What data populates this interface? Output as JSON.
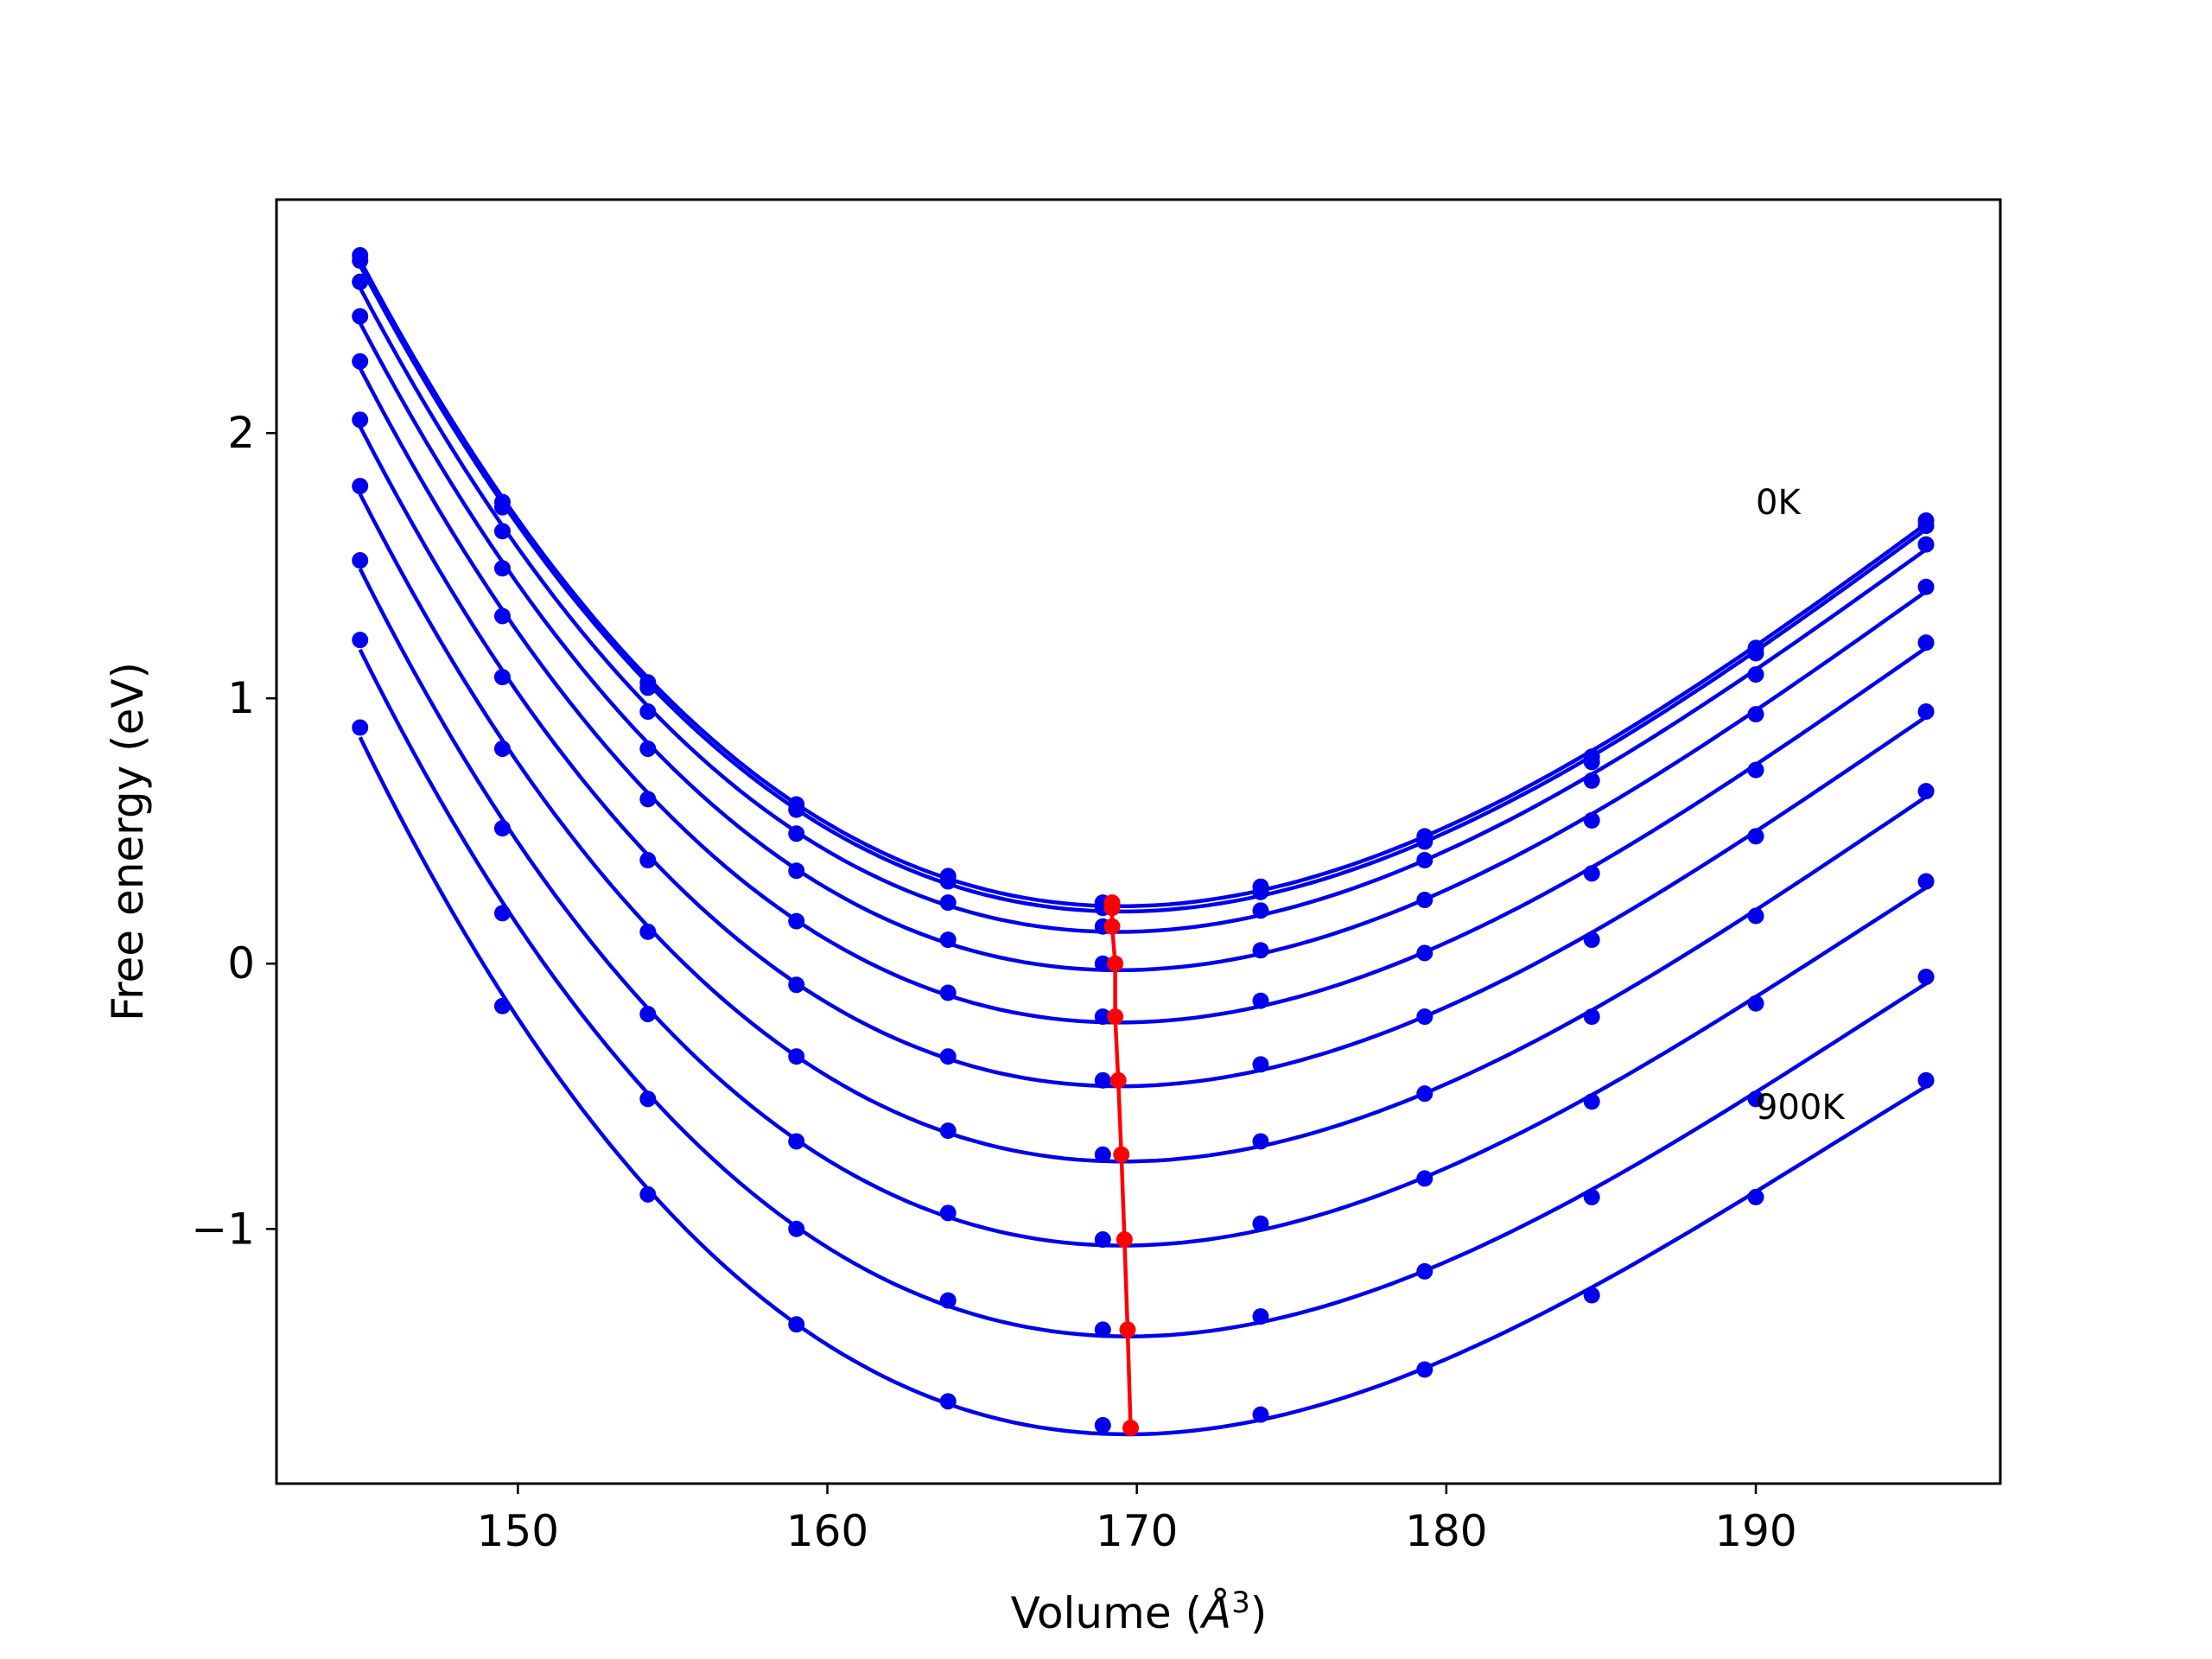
{
  "chart_data": {
    "type": "line",
    "xlabel": "Volume",
    "xlabel_unit_base": "Å",
    "xlabel_unit_exp": "3",
    "ylabel": "Free energy (eV)",
    "xlim": [
      142.2,
      197.9
    ],
    "ylim": [
      -1.96,
      2.88
    ],
    "xticks": [
      150,
      160,
      170,
      180,
      190
    ],
    "yticks": [
      -1,
      0,
      1,
      2
    ],
    "ytick_labels": [
      "−1",
      "0",
      "1",
      "2"
    ],
    "grid": false,
    "legend": "none",
    "colors": {
      "curves": "#0000ee",
      "minima": "#ff0000",
      "frame": "#000000"
    },
    "annotations": [
      {
        "text": "0K",
        "x": 190.0,
        "y": 1.74
      },
      {
        "text": "900K",
        "x": 190.0,
        "y": -0.54
      }
    ],
    "volumes": [
      144.9,
      149.5,
      154.2,
      159.0,
      163.9,
      168.9,
      174.0,
      179.3,
      184.7,
      190.0,
      195.5
    ],
    "series": [
      {
        "values": [
          2.67,
          1.74,
          1.06,
          0.6,
          0.33,
          0.23,
          0.29,
          0.48,
          0.78,
          1.19,
          1.67
        ]
      },
      {
        "values": [
          2.65,
          1.72,
          1.04,
          0.58,
          0.31,
          0.21,
          0.27,
          0.46,
          0.76,
          1.17,
          1.65
        ]
      },
      {
        "values": [
          2.57,
          1.63,
          0.95,
          0.49,
          0.23,
          0.14,
          0.2,
          0.39,
          0.69,
          1.09,
          1.58
        ]
      },
      {
        "values": [
          2.44,
          1.49,
          0.81,
          0.35,
          0.09,
          0.0,
          0.05,
          0.24,
          0.54,
          0.94,
          1.42
        ]
      },
      {
        "values": [
          2.27,
          1.31,
          0.62,
          0.16,
          -0.11,
          -0.2,
          -0.14,
          0.04,
          0.34,
          0.73,
          1.21
        ]
      },
      {
        "values": [
          2.05,
          1.08,
          0.39,
          -0.08,
          -0.35,
          -0.44,
          -0.38,
          -0.2,
          0.09,
          0.48,
          0.95
        ]
      },
      {
        "values": [
          1.8,
          0.81,
          0.12,
          -0.35,
          -0.63,
          -0.72,
          -0.67,
          -0.49,
          -0.2,
          0.18,
          0.65
        ]
      },
      {
        "values": [
          1.52,
          0.51,
          -0.19,
          -0.67,
          -0.94,
          -1.04,
          -0.98,
          -0.81,
          -0.52,
          -0.15,
          0.31
        ]
      },
      {
        "values": [
          1.22,
          0.19,
          -0.51,
          -1.0,
          -1.27,
          -1.38,
          -1.33,
          -1.16,
          -0.88,
          -0.51,
          -0.05
        ]
      },
      {
        "values": [
          0.89,
          -0.16,
          -0.87,
          -1.36,
          -1.65,
          -1.74,
          -1.7,
          -1.53,
          -1.25,
          -0.88,
          -0.44
        ]
      }
    ],
    "minima": {
      "x": [
        169.2,
        169.2,
        169.2,
        169.3,
        169.3,
        169.4,
        169.5,
        169.6,
        169.7,
        169.8
      ],
      "y": [
        0.23,
        0.21,
        0.14,
        0.0,
        -0.2,
        -0.44,
        -0.72,
        -1.04,
        -1.38,
        -1.75
      ]
    }
  }
}
